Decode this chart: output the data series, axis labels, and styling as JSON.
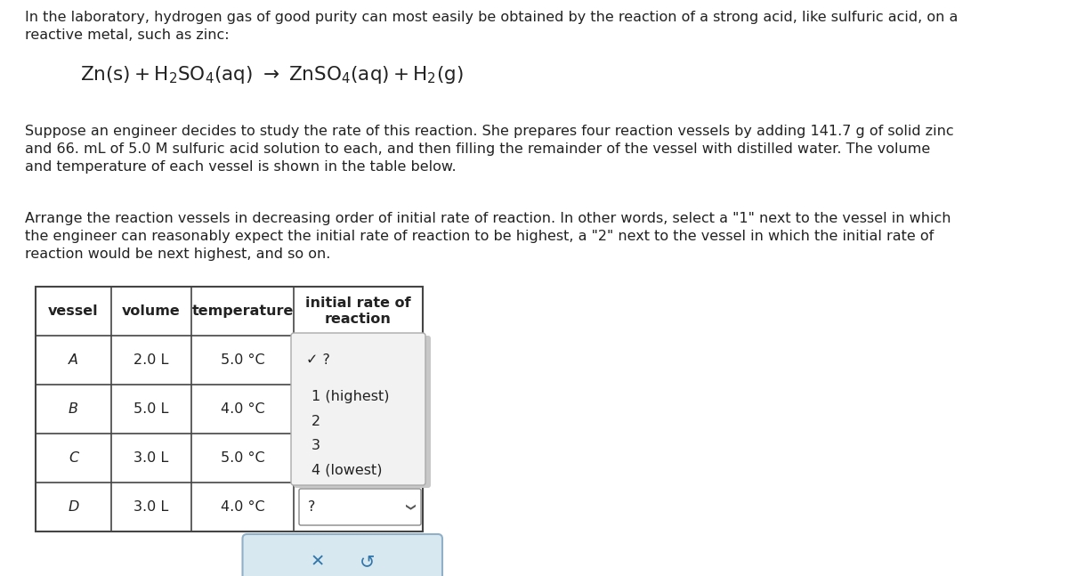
{
  "title_text": "In the laboratory, hydrogen gas of good purity can most easily be obtained by the reaction of a strong acid, like sulfuric acid, on a\nreactive metal, such as zinc:",
  "body_text1": "Suppose an engineer decides to study the rate of this reaction. She prepares four reaction vessels by adding 141.7 g of solid zinc\nand 66. mL of 5.0 M sulfuric acid solution to each, and then filling the remainder of the vessel with distilled water. The volume\nand temperature of each vessel is shown in the table below.",
  "body_text2": "Arrange the reaction vessels in decreasing order of initial rate of reaction. In other words, select a \"1\" next to the vessel in which\nthe engineer can reasonably expect the initial rate of reaction to be highest, a \"2\" next to the vessel in which the initial rate of\nreaction would be next highest, and so on.",
  "table_headers": [
    "vessel",
    "volume",
    "temperature",
    "initial rate of\nreaction"
  ],
  "table_rows": [
    [
      "A",
      "2.0 L",
      "5.0 °C"
    ],
    [
      "B",
      "5.0 L",
      "4.0 °C"
    ],
    [
      "C",
      "3.0 L",
      "5.0 °C"
    ],
    [
      "D",
      "3.0 L",
      "4.0 °C"
    ]
  ],
  "dropdown_options": [
    "1 (highest)",
    "2",
    "3",
    "4 (lowest)"
  ],
  "dropdown_d_text": "?",
  "bg_color": "#ffffff",
  "table_bg": "#ffffff",
  "dropdown_open_bg": "#f2f2f2",
  "border_color": "#444444",
  "text_color": "#222222",
  "button_bg": "#d8e8f0",
  "button_border": "#90b0c8",
  "dd_border_color": "#aaaaaa",
  "dd_shadow_color": "#c8c8c8"
}
